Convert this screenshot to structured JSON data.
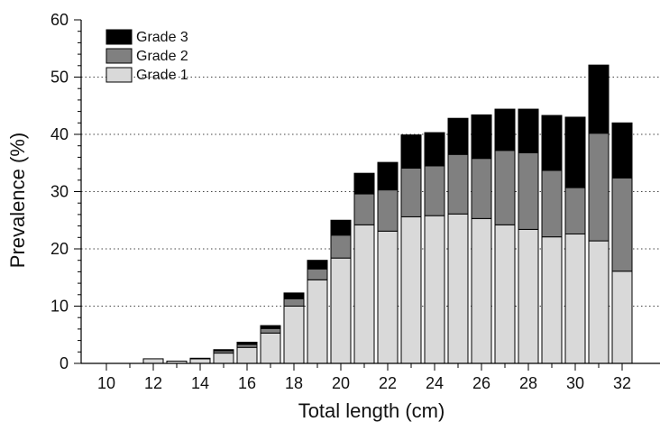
{
  "chart_data": {
    "type": "bar",
    "stacked": true,
    "xlabel": "Total length (cm)",
    "ylabel": "Prevalence (%)",
    "ylim": [
      0,
      60
    ],
    "yticks": [
      "0",
      "10",
      "20",
      "30",
      "40",
      "50",
      "60"
    ],
    "categories": [
      10,
      11,
      12,
      13,
      14,
      15,
      16,
      17,
      18,
      19,
      20,
      21,
      22,
      23,
      24,
      25,
      26,
      27,
      28,
      29,
      30,
      31,
      32
    ],
    "xtick_labels": [
      "10",
      "12",
      "14",
      "16",
      "18",
      "20",
      "22",
      "24",
      "26",
      "28",
      "30",
      "32"
    ],
    "grid": "horizontal dotted at 10, 20, 30, 40, 50",
    "legend_position": "top-left",
    "legend_order": [
      "Grade 3",
      "Grade 2",
      "Grade 1"
    ],
    "series": [
      {
        "name": "Grade 1",
        "color": "#d9d9d9",
        "values": [
          0,
          0,
          0.8,
          0.4,
          0.8,
          1.8,
          2.8,
          5.3,
          10.0,
          14.6,
          18.4,
          24.2,
          23.1,
          25.6,
          25.8,
          26.1,
          25.3,
          24.2,
          23.4,
          22.1,
          22.6,
          21.4,
          16.1
        ]
      },
      {
        "name": "Grade 2",
        "color": "#808080",
        "values": [
          0,
          0,
          0,
          0,
          0.1,
          0.4,
          0.5,
          0.8,
          1.3,
          1.9,
          4.0,
          5.4,
          7.2,
          8.5,
          8.7,
          10.4,
          10.5,
          13.0,
          13.4,
          11.6,
          8.1,
          18.8,
          16.3
        ]
      },
      {
        "name": "Grade 3",
        "color": "#000000",
        "values": [
          0,
          0,
          0,
          0,
          0,
          0.2,
          0.4,
          0.5,
          1.0,
          1.5,
          2.6,
          3.6,
          4.8,
          5.8,
          5.8,
          6.3,
          7.6,
          7.2,
          7.6,
          9.6,
          12.3,
          11.9,
          9.6
        ]
      }
    ]
  }
}
